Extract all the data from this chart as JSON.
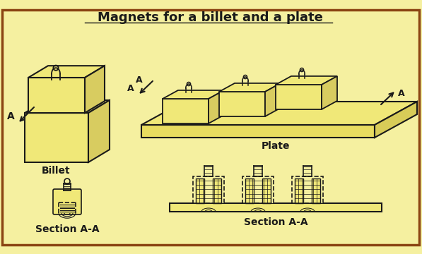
{
  "title": "Magnets for a billet and a plate",
  "bg_color": "#f5f0a0",
  "border_color": "#8B4513",
  "line_color": "#1a1a1a",
  "fill_color": "#f0e878",
  "labels": {
    "billet": "Billet",
    "plate": "Plate",
    "section_aa_left": "Section A-A",
    "section_aa_right": "Section A-A"
  },
  "title_fontsize": 13,
  "label_fontsize": 10
}
